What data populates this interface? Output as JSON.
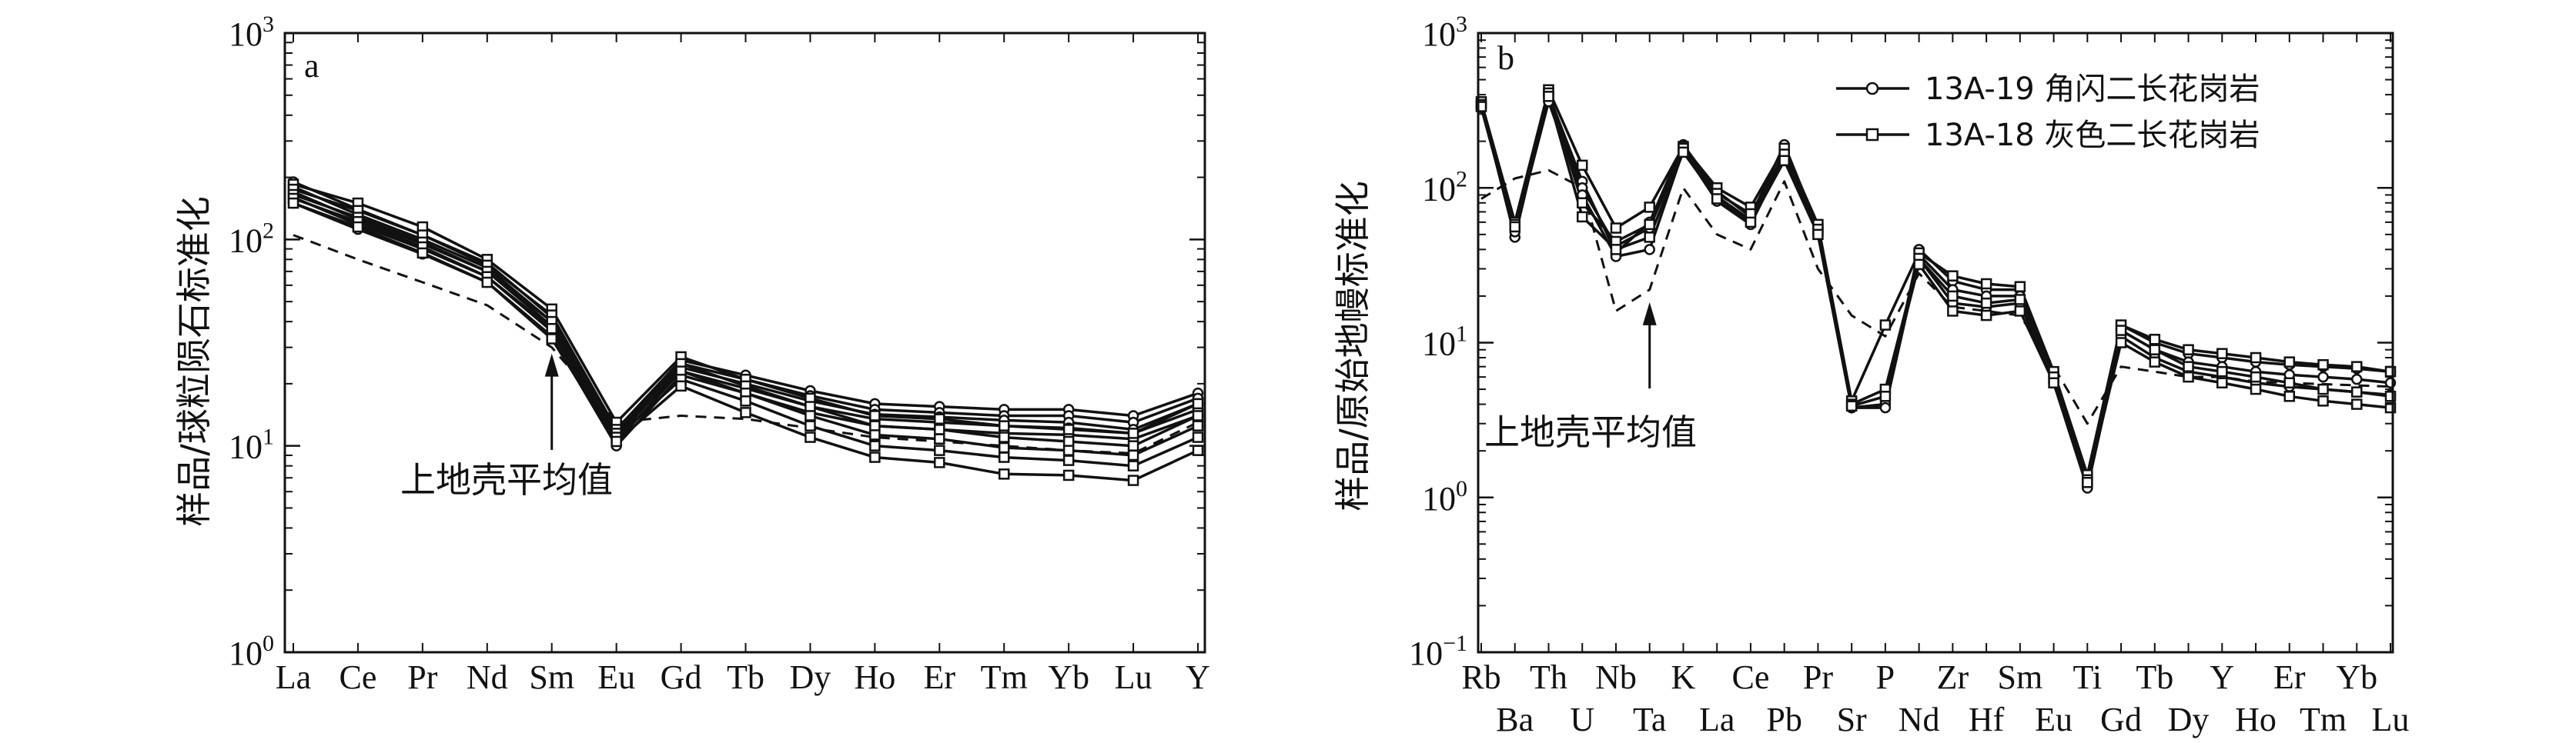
{
  "chart_data": [
    {
      "type": "line",
      "panel_label": "a",
      "ylabel": "样品/球粒陨石标准化",
      "yscale": "log",
      "ylim": [
        1,
        1000
      ],
      "yticks": [
        {
          "value": 1,
          "base": "10",
          "exp": "0"
        },
        {
          "value": 10,
          "base": "10",
          "exp": "1"
        },
        {
          "value": 100,
          "base": "10",
          "exp": "2"
        },
        {
          "value": 1000,
          "base": "10",
          "exp": "3"
        }
      ],
      "categories": [
        "La",
        "Ce",
        "Pr",
        "Nd",
        "Sm",
        "Eu",
        "Gd",
        "Tb",
        "Dy",
        "Ho",
        "Er",
        "Tm",
        "Yb",
        "Lu",
        "Y"
      ],
      "series": [
        {
          "group": "13A-19",
          "marker": "circle",
          "values": [
            190,
            140,
            105,
            77,
            42,
            12,
            26,
            22,
            18.5,
            16,
            15.5,
            15,
            15,
            14,
            18
          ]
        },
        {
          "group": "13A-19",
          "marker": "circle",
          "values": [
            180,
            132,
            100,
            73,
            40,
            11.5,
            25,
            21,
            17.5,
            15,
            14.5,
            14,
            14,
            13,
            17
          ]
        },
        {
          "group": "13A-19",
          "marker": "circle",
          "values": [
            170,
            125,
            95,
            70,
            38,
            11,
            24,
            20,
            16.5,
            14.2,
            13.8,
            13.3,
            13,
            12,
            16
          ]
        },
        {
          "group": "13A-19",
          "marker": "circle",
          "values": [
            160,
            118,
            90,
            66,
            36,
            10.5,
            23,
            19,
            15.5,
            13.5,
            13,
            12.5,
            12.2,
            11.5,
            15
          ]
        },
        {
          "group": "13A-19",
          "marker": "circle",
          "values": [
            150,
            112,
            85,
            62,
            34,
            10,
            22,
            18,
            14.5,
            12.5,
            12,
            11.5,
            11.3,
            10.8,
            14
          ]
        },
        {
          "group": "13A-18",
          "marker": "square",
          "values": [
            185,
            150,
            115,
            80,
            46,
            13,
            27,
            21,
            17,
            14,
            13.5,
            12.5,
            12,
            11.5,
            16
          ]
        },
        {
          "group": "13A-18",
          "marker": "square",
          "values": [
            175,
            138,
            105,
            75,
            43,
            12,
            25,
            19.5,
            15.5,
            12.5,
            12,
            11,
            10.5,
            10,
            14
          ]
        },
        {
          "group": "13A-18",
          "marker": "square",
          "values": [
            165,
            128,
            97,
            70,
            40,
            11.5,
            23,
            18,
            14,
            11.3,
            10.8,
            9.8,
            9.5,
            9,
            12.5
          ]
        },
        {
          "group": "13A-18",
          "marker": "square",
          "values": [
            158,
            122,
            92,
            66,
            37,
            11,
            21,
            16.5,
            12.5,
            10,
            9.5,
            8.8,
            8.5,
            8,
            11
          ]
        },
        {
          "group": "13A-18",
          "marker": "square",
          "values": [
            150,
            115,
            86,
            62,
            33,
            10.5,
            19.5,
            14.5,
            11,
            8.8,
            8.3,
            7.3,
            7.2,
            6.8,
            9.5
          ]
        },
        {
          "group": "upper-crust",
          "style": "dashed",
          "values": [
            105,
            80,
            62,
            48,
            30,
            13,
            14,
            13.5,
            12.2,
            11,
            10.5,
            10,
            9.5,
            9.2,
            13
          ]
        }
      ],
      "annotation": {
        "text": "上地壳平均值",
        "arrow_target": {
          "x": "Sm",
          "y": 30
        }
      }
    },
    {
      "type": "line",
      "panel_label": "b",
      "ylabel": "样品/原始地幔标准化",
      "yscale": "log",
      "ylim": [
        0.1,
        1000
      ],
      "yticks": [
        {
          "value": 0.1,
          "base": "10",
          "exp": "−1"
        },
        {
          "value": 1,
          "base": "10",
          "exp": "0"
        },
        {
          "value": 10,
          "base": "10",
          "exp": "1"
        },
        {
          "value": 100,
          "base": "10",
          "exp": "2"
        },
        {
          "value": 1000,
          "base": "10",
          "exp": "3"
        }
      ],
      "categories": [
        "Rb",
        "Ba",
        "Th",
        "U",
        "Nb",
        "Ta",
        "K",
        "La",
        "Ce",
        "Pb",
        "Pr",
        "Sr",
        "P",
        "Nd",
        "Zr",
        "Hf",
        "Sm",
        "Eu",
        "Ti",
        "Gd",
        "Tb",
        "Dy",
        "Y",
        "Ho",
        "Er",
        "Tm",
        "Yb",
        "Lu"
      ],
      "series": [
        {
          "group": "13A-19",
          "marker": "circle",
          "values": [
            350,
            48,
            400,
            110,
            38,
            60,
            190,
            95,
            65,
            190,
            55,
            3.8,
            4,
            40,
            25,
            22,
            22,
            6,
            1.2,
            13,
            10,
            8.5,
            8,
            7.5,
            7.2,
            7,
            6.8,
            6.5
          ]
        },
        {
          "group": "13A-19",
          "marker": "circle",
          "values": [
            340,
            55,
            380,
            100,
            42,
            55,
            180,
            88,
            62,
            170,
            52,
            3.8,
            4,
            37,
            22,
            20,
            20,
            5.5,
            1.2,
            12,
            9,
            7.5,
            7,
            6.5,
            6.2,
            6,
            5.8,
            5.5
          ]
        },
        {
          "group": "13A-19",
          "marker": "circle",
          "values": [
            330,
            52,
            360,
            90,
            36,
            40,
            175,
            82,
            58,
            160,
            50,
            3.8,
            3.8,
            35,
            18,
            17,
            18,
            5.5,
            1.15,
            11,
            8,
            6.5,
            6,
            5.5,
            5.2,
            5,
            4.8,
            4.6
          ]
        },
        {
          "group": "13A-18",
          "marker": "square",
          "values": [
            360,
            60,
            430,
            140,
            55,
            75,
            185,
            100,
            75,
            180,
            58,
            4.2,
            13,
            38,
            27,
            24,
            23,
            6.5,
            1.4,
            13,
            10.5,
            9,
            8.5,
            8,
            7.5,
            7.2,
            7,
            6.5
          ]
        },
        {
          "group": "13A-18",
          "marker": "square",
          "values": [
            345,
            58,
            410,
            80,
            45,
            58,
            180,
            92,
            68,
            165,
            54,
            4,
            5,
            35,
            20,
            18,
            19,
            6,
            1.3,
            12,
            9,
            7,
            6.5,
            6,
            5.5,
            5,
            4.8,
            4.5
          ]
        },
        {
          "group": "13A-18",
          "marker": "square",
          "values": [
            335,
            56,
            390,
            65,
            40,
            48,
            170,
            85,
            60,
            150,
            50,
            3.9,
            4.5,
            32,
            16,
            15,
            16,
            5.5,
            1.25,
            10,
            7.5,
            6,
            5.5,
            5,
            4.5,
            4.2,
            4,
            3.8
          ]
        },
        {
          "group": "upper-crust",
          "style": "dashed",
          "values": [
            85,
            115,
            130,
            100,
            16,
            22,
            100,
            50,
            40,
            110,
            30,
            15,
            11,
            28,
            17,
            16,
            15,
            7,
            3,
            7,
            6.5,
            6,
            6,
            5.6,
            5.5,
            5.4,
            5.3,
            5.2
          ]
        }
      ],
      "legend": [
        {
          "label": "13A-19 角闪二长花岗岩",
          "marker": "circle"
        },
        {
          "label": "13A-18 灰色二长花岗岩",
          "marker": "square"
        }
      ],
      "legend_position": "top-right",
      "annotation": {
        "text": "上地壳平均值",
        "arrow_target": {
          "x": "Ta",
          "y": 20
        }
      }
    }
  ]
}
